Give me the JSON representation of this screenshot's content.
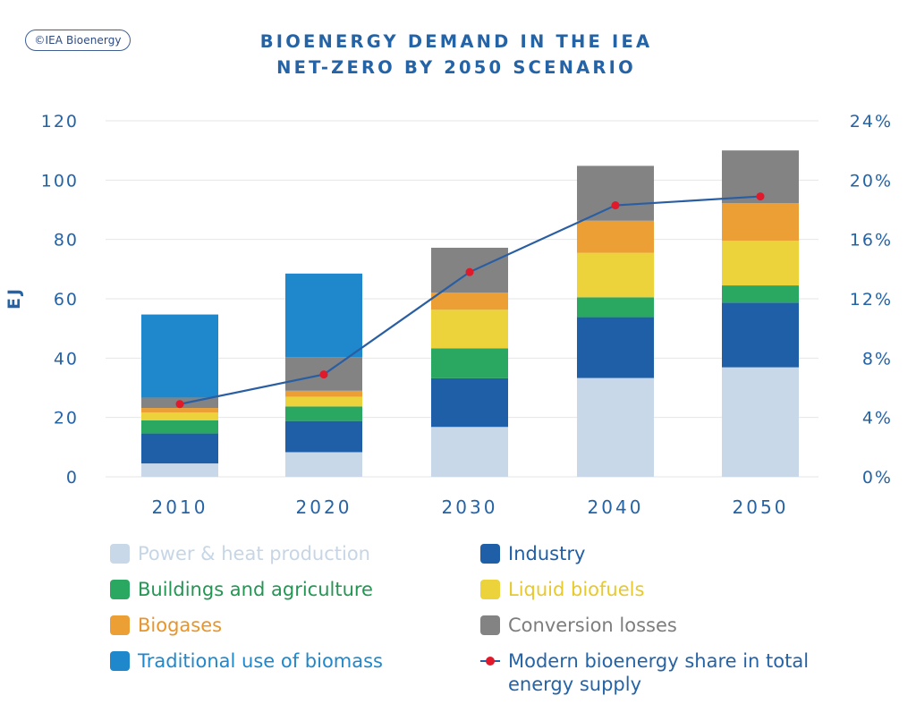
{
  "logo": "©IEA Bioenergy",
  "title_lines": [
    "BIOENERGY DEMAND IN THE IEA",
    "NET-ZERO BY 2050 SCENARIO"
  ],
  "chart_data": {
    "type": "bar",
    "stacked": true,
    "categories": [
      "2010",
      "2020",
      "2030",
      "2040",
      "2050"
    ],
    "ylabel": "EJ",
    "ylim": [
      0,
      120
    ],
    "y_ticks": [
      0,
      20,
      40,
      60,
      80,
      100,
      120
    ],
    "y_tick_labels": [
      "0",
      "20",
      "40",
      "60",
      "80",
      "100",
      "120"
    ],
    "y2lim": [
      0,
      24
    ],
    "y2_ticks": [
      0,
      4,
      8,
      12,
      16,
      20,
      24
    ],
    "y2_tick_labels": [
      "0%",
      "4%",
      "8%",
      "12%",
      "16%",
      "20%",
      "24%"
    ],
    "grid": true,
    "series": [
      {
        "name": "Power & heat production",
        "color": "#c9d8e8",
        "values": [
          4.5,
          8.3,
          16.8,
          33.3,
          36.9
        ]
      },
      {
        "name": "Industry",
        "color": "#1f5fa8",
        "values": [
          10.1,
          10.5,
          16.4,
          20.5,
          21.8
        ]
      },
      {
        "name": "Buildings and agriculture",
        "color": "#2aa760",
        "values": [
          4.4,
          4.9,
          10.1,
          6.7,
          5.8
        ]
      },
      {
        "name": "Liquid biofuels",
        "color": "#ecd23b",
        "values": [
          2.7,
          3.3,
          13.0,
          15.0,
          15.1
        ]
      },
      {
        "name": "Biogases",
        "color": "#eb9f34",
        "values": [
          1.5,
          2.0,
          5.8,
          10.8,
          12.6
        ]
      },
      {
        "name": "Conversion losses",
        "color": "#838383",
        "values": [
          3.5,
          11.3,
          15.1,
          18.5,
          17.8
        ]
      },
      {
        "name": "Traditional use of biomass",
        "color": "#1f88cc",
        "values": [
          28.0,
          28.2,
          0,
          0,
          0
        ]
      }
    ],
    "line_series": {
      "name": "Modern bioenergy share in total energy supply",
      "axis": "right",
      "line_color": "#2a5ea2",
      "marker_color": "#e0192b",
      "values": [
        4.9,
        6.9,
        13.8,
        18.3,
        18.9
      ]
    }
  },
  "legend": [
    {
      "label": "Power & heat production",
      "color": "#c9d8e8",
      "text_color": "#c6d6e6"
    },
    {
      "label": "Industry",
      "color": "#1f5fa8",
      "text_color": "#1f5fa8"
    },
    {
      "label": "Buildings and agriculture",
      "color": "#2aa760",
      "text_color": "#239653"
    },
    {
      "label": "Liquid biofuels",
      "color": "#ecd23b",
      "text_color": "#e8c92b"
    },
    {
      "label": "Biogases",
      "color": "#eb9f34",
      "text_color": "#e8952a"
    },
    {
      "label": "Conversion losses",
      "color": "#838383",
      "text_color": "#7d7d7d"
    },
    {
      "label": "Traditional use of biomass",
      "color": "#1f88cc",
      "text_color": "#1f88cc"
    },
    {
      "label_lines": [
        "Modern bioenergy share in total",
        "energy supply"
      ],
      "color": "#2a5ea2",
      "text_color": "#2563a7"
    }
  ]
}
